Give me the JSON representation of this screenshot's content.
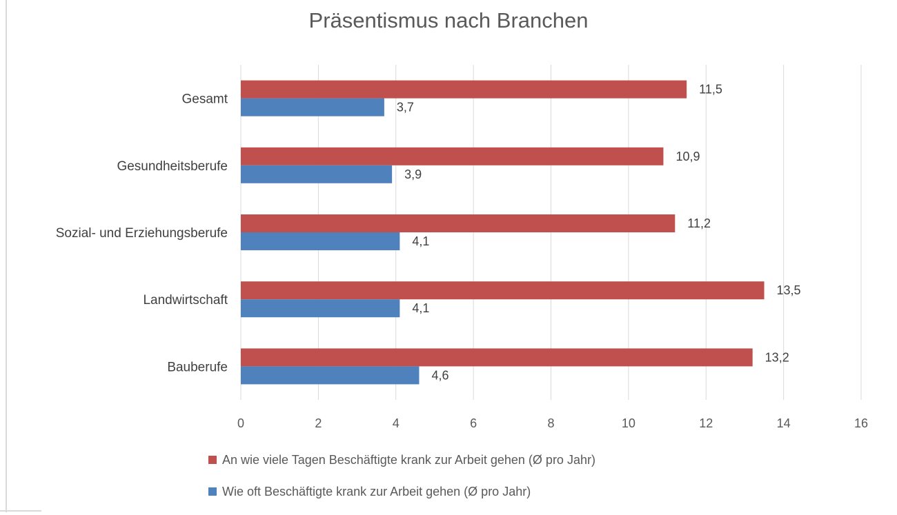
{
  "chart_data": {
    "type": "bar",
    "orientation": "horizontal",
    "title": "Präsentismus  nach Branchen",
    "categories": [
      "Gesamt",
      "Gesundheitsberufe",
      "Sozial- und Erziehungsberufe",
      "Landwirtschaft",
      "Bauberufe"
    ],
    "series": [
      {
        "name": "An wie viele Tagen Beschäftigte krank zur Arbeit gehen (Ø pro Jahr)",
        "color": "#c0504d",
        "values": [
          11.5,
          10.9,
          11.2,
          13.5,
          13.2
        ],
        "labels": [
          "11,5",
          "10,9",
          "11,2",
          "13,5",
          "13,2"
        ]
      },
      {
        "name": "Wie oft Beschäftigte krank zur Arbeit gehen (Ø pro Jahr)",
        "color": "#4f81bd",
        "values": [
          3.7,
          3.9,
          4.1,
          4.1,
          4.6
        ],
        "labels": [
          "3,7",
          "3,9",
          "4,1",
          "4,1",
          "4,6"
        ]
      }
    ],
    "xlim": [
      0,
      16
    ],
    "xticks": [
      "0",
      "2",
      "4",
      "6",
      "8",
      "10",
      "12",
      "14",
      "16"
    ],
    "grid": true,
    "legend_position": "bottom"
  }
}
